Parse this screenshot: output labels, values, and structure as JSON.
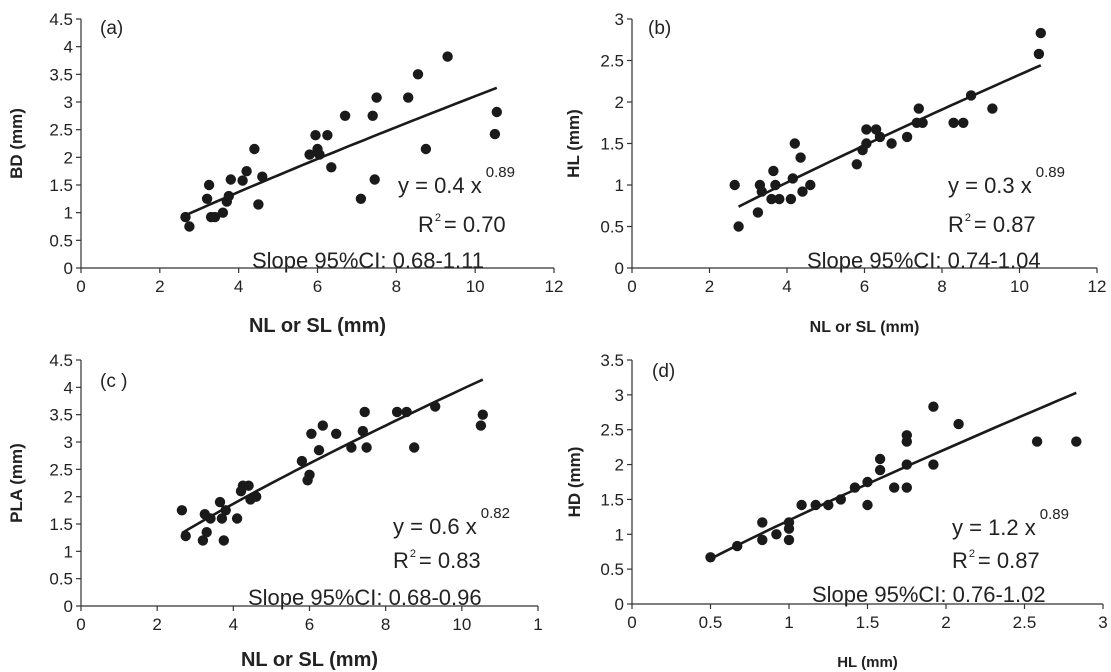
{
  "chart_data": [
    {
      "type": "scatter",
      "panel_label": "(a)",
      "xlabel": "NL or SL (mm)",
      "ylabel": "BD (mm)",
      "xlim": [
        0,
        12
      ],
      "ylim": [
        0,
        4.5
      ],
      "xticks": [
        "0",
        "2",
        "4",
        "6",
        "8",
        "10",
        "12"
      ],
      "yticks": [
        "0",
        "0.5",
        "1",
        "1.5",
        "2",
        "2.5",
        "3",
        "3.5",
        "4",
        "4.5"
      ],
      "equation": "y = 0.4 x",
      "exponent": "0.89",
      "r2_value": "= 0.70",
      "slope_ci": "Slope 95%CI: 0.68-1.11",
      "fit": {
        "a": 0.4,
        "b": 0.89,
        "x_range": [
          2.65,
          10.55
        ]
      },
      "points": [
        [
          2.65,
          0.92
        ],
        [
          2.75,
          0.75
        ],
        [
          3.2,
          1.25
        ],
        [
          3.25,
          1.5
        ],
        [
          3.3,
          0.92
        ],
        [
          3.4,
          0.92
        ],
        [
          3.6,
          1.0
        ],
        [
          3.7,
          1.2
        ],
        [
          3.75,
          1.3
        ],
        [
          3.8,
          1.6
        ],
        [
          4.1,
          1.58
        ],
        [
          4.2,
          1.75
        ],
        [
          4.4,
          2.15
        ],
        [
          4.5,
          1.15
        ],
        [
          4.6,
          1.65
        ],
        [
          5.8,
          2.05
        ],
        [
          5.95,
          2.4
        ],
        [
          6.0,
          2.15
        ],
        [
          6.05,
          2.05
        ],
        [
          6.25,
          2.4
        ],
        [
          6.35,
          1.82
        ],
        [
          6.7,
          2.75
        ],
        [
          7.1,
          1.25
        ],
        [
          7.4,
          2.75
        ],
        [
          7.45,
          1.6
        ],
        [
          7.5,
          3.08
        ],
        [
          8.3,
          3.08
        ],
        [
          8.55,
          3.5
        ],
        [
          8.75,
          2.15
        ],
        [
          9.3,
          3.82
        ],
        [
          10.5,
          2.42
        ],
        [
          10.55,
          2.82
        ]
      ]
    },
    {
      "type": "scatter",
      "panel_label": "(b)",
      "xlabel": "NL or SL (mm)",
      "ylabel": "HL (mm)",
      "xlim": [
        0,
        12
      ],
      "ylim": [
        0,
        3
      ],
      "xticks": [
        "0",
        "2",
        "4",
        "6",
        "8",
        "10",
        "12"
      ],
      "yticks": [
        "0",
        "0.5",
        "1",
        "1.5",
        "2",
        "2.5",
        "3"
      ],
      "equation": "y = 0.3 x",
      "exponent": "0.89",
      "r2_value": "= 0.87",
      "slope_ci": "Slope 95%CI: 0.74-1.04",
      "fit": {
        "a": 0.3,
        "b": 0.89,
        "x_range": [
          2.75,
          10.55
        ]
      },
      "points": [
        [
          2.65,
          1.0
        ],
        [
          2.75,
          0.5
        ],
        [
          3.25,
          0.67
        ],
        [
          3.3,
          1.0
        ],
        [
          3.35,
          0.92
        ],
        [
          3.6,
          0.83
        ],
        [
          3.65,
          1.17
        ],
        [
          3.7,
          1.0
        ],
        [
          3.8,
          0.83
        ],
        [
          4.1,
          0.83
        ],
        [
          4.15,
          1.08
        ],
        [
          4.2,
          1.5
        ],
        [
          4.35,
          1.33
        ],
        [
          4.4,
          0.92
        ],
        [
          4.6,
          1.0
        ],
        [
          5.8,
          1.25
        ],
        [
          5.95,
          1.42
        ],
        [
          6.05,
          1.5
        ],
        [
          6.05,
          1.67
        ],
        [
          6.3,
          1.67
        ],
        [
          6.4,
          1.58
        ],
        [
          6.7,
          1.5
        ],
        [
          7.1,
          1.58
        ],
        [
          7.35,
          1.75
        ],
        [
          7.4,
          1.92
        ],
        [
          7.5,
          1.75
        ],
        [
          8.3,
          1.75
        ],
        [
          8.55,
          1.75
        ],
        [
          8.75,
          2.08
        ],
        [
          9.3,
          1.92
        ],
        [
          10.5,
          2.58
        ],
        [
          10.55,
          2.83
        ]
      ]
    },
    {
      "type": "scatter",
      "panel_label": "(c )",
      "xlabel": "NL or SL (mm)",
      "ylabel": "PLA (mm)",
      "xlim": [
        0,
        12
      ],
      "ylim": [
        0,
        4.5
      ],
      "xticks": [
        "0",
        "2",
        "4",
        "6",
        "8",
        "10",
        "1"
      ],
      "yticks": [
        "0",
        "0.5",
        "1",
        "1.5",
        "2",
        "2.5",
        "3",
        "3.5",
        "4",
        "4.5"
      ],
      "equation": "y = 0.6 x",
      "exponent": "0.82",
      "r2_value": "= 0.83",
      "slope_ci": "Slope 95%CI: 0.68-0.96",
      "fit": {
        "a": 0.6,
        "b": 0.82,
        "x_range": [
          2.65,
          10.55
        ]
      },
      "points": [
        [
          2.65,
          1.75
        ],
        [
          2.75,
          1.28
        ],
        [
          3.2,
          1.2
        ],
        [
          3.25,
          1.68
        ],
        [
          3.3,
          1.35
        ],
        [
          3.4,
          1.6
        ],
        [
          3.65,
          1.9
        ],
        [
          3.7,
          1.6
        ],
        [
          3.75,
          1.2
        ],
        [
          3.8,
          1.75
        ],
        [
          4.1,
          1.6
        ],
        [
          4.2,
          2.1
        ],
        [
          4.25,
          2.2
        ],
        [
          4.4,
          2.2
        ],
        [
          4.45,
          1.95
        ],
        [
          4.6,
          2.0
        ],
        [
          5.8,
          2.65
        ],
        [
          5.95,
          2.3
        ],
        [
          6.0,
          2.4
        ],
        [
          6.05,
          3.15
        ],
        [
          6.25,
          2.85
        ],
        [
          6.35,
          3.3
        ],
        [
          6.7,
          3.15
        ],
        [
          7.1,
          2.9
        ],
        [
          7.4,
          3.2
        ],
        [
          7.45,
          3.55
        ],
        [
          7.5,
          2.9
        ],
        [
          8.3,
          3.55
        ],
        [
          8.55,
          3.55
        ],
        [
          8.75,
          2.9
        ],
        [
          9.3,
          3.65
        ],
        [
          10.5,
          3.3
        ],
        [
          10.55,
          3.5
        ]
      ]
    },
    {
      "type": "scatter",
      "panel_label": "(d)",
      "xlabel": "HL (mm)",
      "ylabel": "HD (mm)",
      "xlim": [
        0,
        3
      ],
      "ylim": [
        0,
        3.5
      ],
      "xticks": [
        "0",
        "0.5",
        "1",
        "1.5",
        "2",
        "2.5",
        "3"
      ],
      "yticks": [
        "0",
        "0.5",
        "1",
        "1.5",
        "2",
        "2.5",
        "3",
        "3.5"
      ],
      "equation": "y = 1.2 x",
      "exponent": "0.89",
      "r2_value": "= 0.87",
      "slope_ci": "Slope 95%CI: 0.76-1.02",
      "fit": {
        "a": 1.2,
        "b": 0.89,
        "x_range": [
          0.5,
          2.83
        ]
      },
      "points": [
        [
          0.5,
          0.67
        ],
        [
          0.67,
          0.83
        ],
        [
          0.83,
          0.92
        ],
        [
          0.83,
          1.17
        ],
        [
          0.92,
          1.0
        ],
        [
          1.0,
          1.08
        ],
        [
          1.0,
          1.17
        ],
        [
          1.0,
          0.92
        ],
        [
          1.08,
          1.42
        ],
        [
          1.17,
          1.42
        ],
        [
          1.25,
          1.42
        ],
        [
          1.33,
          1.5
        ],
        [
          1.42,
          1.67
        ],
        [
          1.5,
          1.75
        ],
        [
          1.5,
          1.42
        ],
        [
          1.58,
          1.92
        ],
        [
          1.58,
          2.08
        ],
        [
          1.67,
          1.67
        ],
        [
          1.75,
          2.0
        ],
        [
          1.75,
          2.33
        ],
        [
          1.75,
          2.42
        ],
        [
          1.75,
          1.67
        ],
        [
          1.92,
          2.0
        ],
        [
          1.92,
          2.83
        ],
        [
          2.08,
          2.58
        ],
        [
          2.58,
          2.33
        ],
        [
          2.83,
          2.33
        ]
      ]
    }
  ]
}
